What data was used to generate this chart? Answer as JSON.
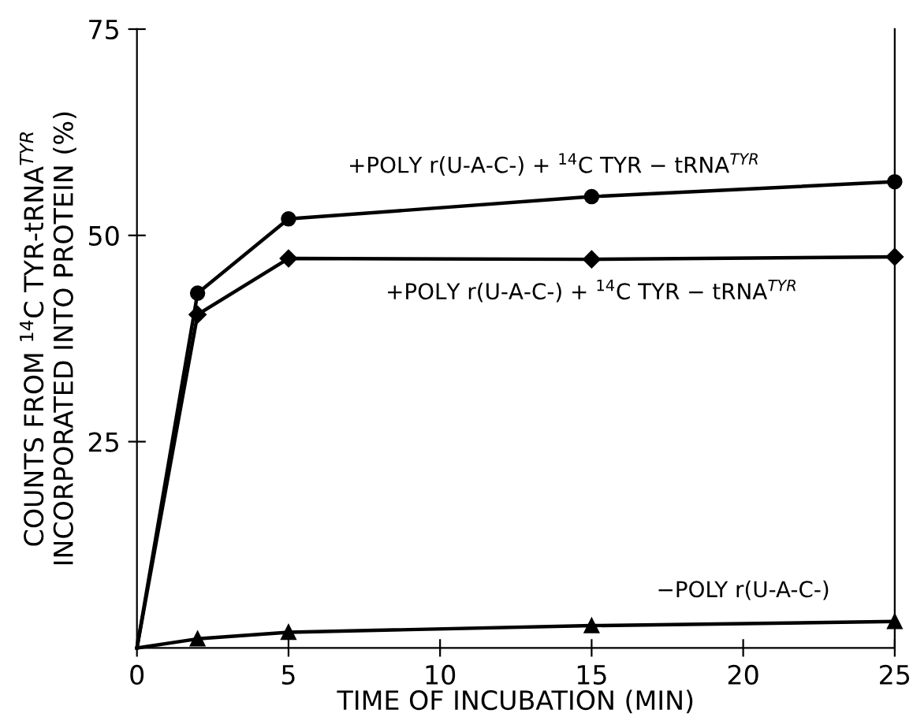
{
  "chart_data": {
    "type": "line",
    "xlabel": "TIME OF INCUBATION (MIN)",
    "ylabel": "COUNTS FROM $^{14}$C TYR-tRNA$^{TYR}$\nINCORPORATED INTO PROTEIN (%)",
    "x": [
      0,
      2,
      5,
      15,
      25
    ],
    "series": [
      {
        "name": "+POLY r(U-A-C-) + $^{14}$C TYR − tRNA$^{TYR}$",
        "color": "#000000",
        "marker": "circle",
        "values": [
          0,
          43,
          52,
          54.7,
          56.5
        ]
      },
      {
        "name": "+POLY r(U-A-C-) + $^{14}$C TYR − tRNA$^{TYR}$",
        "color": "#000000",
        "marker": "diamond",
        "values": [
          0,
          40.4,
          47.2,
          47.1,
          47.4
        ]
      },
      {
        "name": "−POLY r(U-A-C-)",
        "color": "#000000",
        "marker": "triangle",
        "values": [
          0,
          1.1,
          1.9,
          2.7,
          3.2
        ]
      }
    ],
    "xlim": [
      0,
      25
    ],
    "ylim": [
      0,
      75
    ],
    "xticks": [
      0,
      5,
      10,
      15,
      20,
      25
    ],
    "yticks": [
      25,
      50,
      75
    ],
    "grid": false,
    "legend": false,
    "line_style": "solid"
  }
}
